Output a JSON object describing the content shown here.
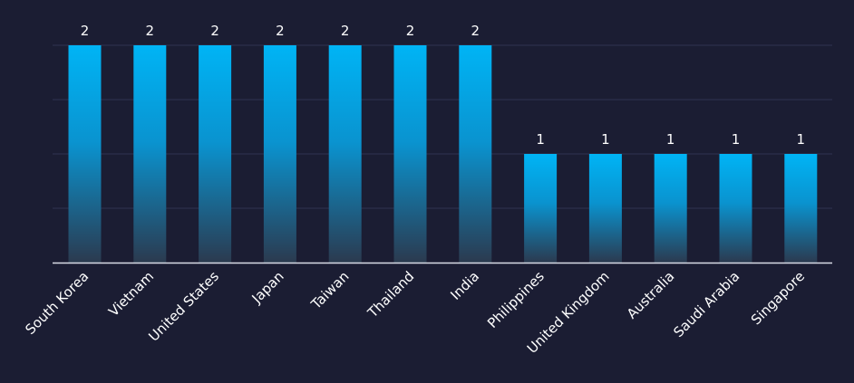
{
  "chart_data": {
    "type": "bar",
    "categories": [
      "South Korea",
      "Vietnam",
      "United States",
      "Japan",
      "Taiwan",
      "Thailand",
      "India",
      "Philippines",
      "United Kingdom",
      "Australia",
      "Saudi Arabia",
      "Singapore"
    ],
    "values": [
      2,
      2,
      2,
      2,
      2,
      2,
      2,
      1,
      1,
      1,
      1,
      1
    ],
    "data_labels": [
      "2",
      "2",
      "2",
      "2",
      "2",
      "2",
      "2",
      "1",
      "1",
      "1",
      "1",
      "1"
    ],
    "title": "",
    "xlabel": "",
    "ylabel": "",
    "ylim": [
      0,
      2
    ],
    "grid": true,
    "legend": "none",
    "colors": {
      "background": "#1b1d33",
      "bar_top": "#00b4f5",
      "bar_bottom": "#2b3a4f",
      "gridline": "#2f3250",
      "axis": "#d9dce6",
      "text": "#ffffff"
    }
  }
}
